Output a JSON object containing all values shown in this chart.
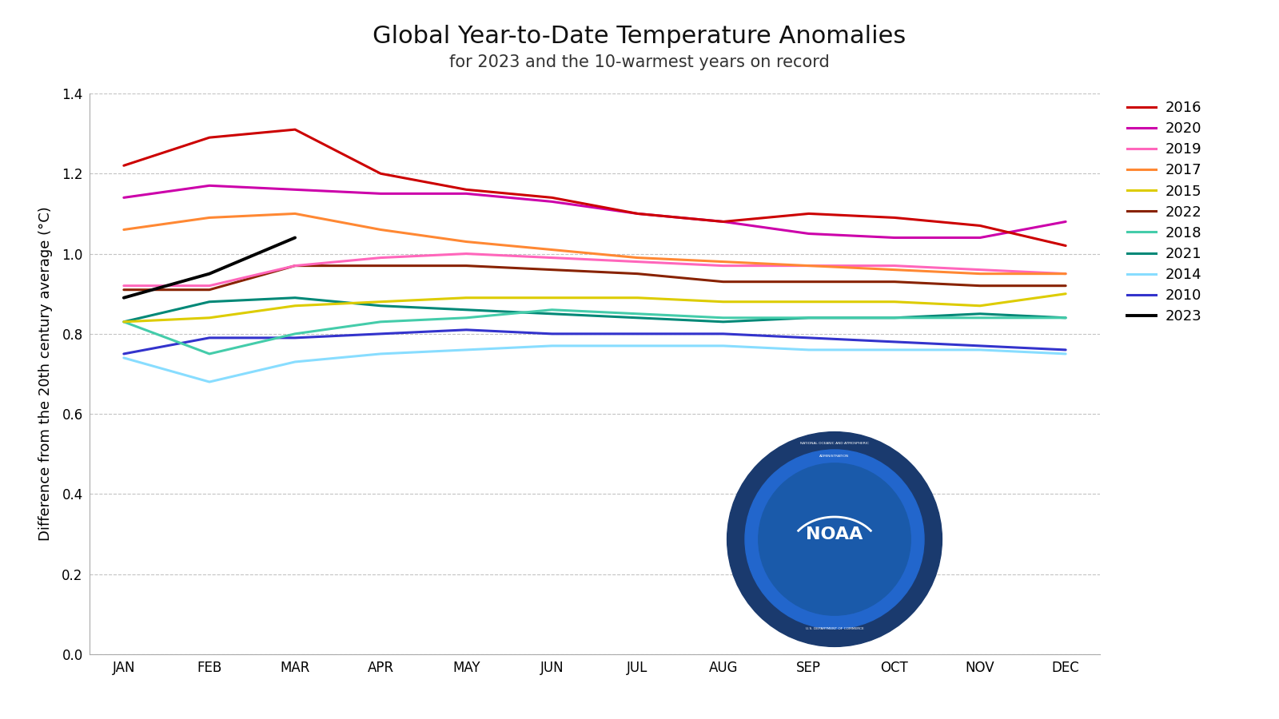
{
  "title": "Global Year-to-Date Temperature Anomalies",
  "subtitle": "for 2023 and the 10-warmest years on record",
  "ylabel": "Difference from the 20th century average (°C)",
  "ylim": [
    0.0,
    1.4
  ],
  "yticks": [
    0.0,
    0.2,
    0.4,
    0.6,
    0.8,
    1.0,
    1.2,
    1.4
  ],
  "months": [
    "JAN",
    "FEB",
    "MAR",
    "APR",
    "MAY",
    "JUN",
    "JUL",
    "AUG",
    "SEP",
    "OCT",
    "NOV",
    "DEC"
  ],
  "series": {
    "2016": {
      "color": "#cc0000",
      "linewidth": 2.2,
      "data": [
        1.22,
        1.29,
        1.31,
        1.2,
        1.16,
        1.14,
        1.1,
        1.08,
        1.1,
        1.09,
        1.07,
        1.02
      ]
    },
    "2020": {
      "color": "#cc00aa",
      "linewidth": 2.2,
      "data": [
        1.14,
        1.17,
        1.16,
        1.15,
        1.15,
        1.13,
        1.1,
        1.08,
        1.05,
        1.04,
        1.04,
        1.08
      ]
    },
    "2019": {
      "color": "#ff66bb",
      "linewidth": 2.2,
      "data": [
        0.92,
        0.92,
        0.97,
        0.99,
        1.0,
        0.99,
        0.98,
        0.97,
        0.97,
        0.97,
        0.96,
        0.95
      ]
    },
    "2017": {
      "color": "#ff8833",
      "linewidth": 2.2,
      "data": [
        1.06,
        1.09,
        1.1,
        1.06,
        1.03,
        1.01,
        0.99,
        0.98,
        0.97,
        0.96,
        0.95,
        0.95
      ]
    },
    "2015": {
      "color": "#ddcc00",
      "linewidth": 2.2,
      "data": [
        0.83,
        0.84,
        0.87,
        0.88,
        0.89,
        0.89,
        0.89,
        0.88,
        0.88,
        0.88,
        0.87,
        0.9
      ]
    },
    "2022": {
      "color": "#882200",
      "linewidth": 2.2,
      "data": [
        0.91,
        0.91,
        0.97,
        0.97,
        0.97,
        0.96,
        0.95,
        0.93,
        0.93,
        0.93,
        0.92,
        0.92
      ]
    },
    "2018": {
      "color": "#44ccaa",
      "linewidth": 2.2,
      "data": [
        0.83,
        0.75,
        0.8,
        0.83,
        0.84,
        0.86,
        0.85,
        0.84,
        0.84,
        0.84,
        0.84,
        0.84
      ]
    },
    "2021": {
      "color": "#008877",
      "linewidth": 2.2,
      "data": [
        0.83,
        0.88,
        0.89,
        0.87,
        0.86,
        0.85,
        0.84,
        0.83,
        0.84,
        0.84,
        0.85,
        0.84
      ]
    },
    "2014": {
      "color": "#88ddff",
      "linewidth": 2.2,
      "data": [
        0.74,
        0.68,
        0.73,
        0.75,
        0.76,
        0.77,
        0.77,
        0.77,
        0.76,
        0.76,
        0.76,
        0.75
      ]
    },
    "2010": {
      "color": "#3333cc",
      "linewidth": 2.2,
      "data": [
        0.75,
        0.79,
        0.79,
        0.8,
        0.81,
        0.8,
        0.8,
        0.8,
        0.79,
        0.78,
        0.77,
        0.76
      ]
    },
    "2023": {
      "color": "#000000",
      "linewidth": 2.8,
      "data": [
        0.89,
        0.95,
        1.04,
        null,
        null,
        null,
        null,
        null,
        null,
        null,
        null,
        null
      ]
    }
  },
  "legend_order": [
    "2016",
    "2020",
    "2019",
    "2017",
    "2015",
    "2022",
    "2018",
    "2021",
    "2014",
    "2010",
    "2023"
  ],
  "background_color": "#ffffff",
  "grid_color": "#aaaaaa",
  "title_fontsize": 22,
  "subtitle_fontsize": 15,
  "ylabel_fontsize": 13,
  "tick_fontsize": 12,
  "legend_fontsize": 13,
  "noaa_logo": {
    "outer_color": "#1a3a6e",
    "inner_color": "#2255aa",
    "text_color": "#ffffff",
    "ring_text_color": "#ffffff"
  }
}
